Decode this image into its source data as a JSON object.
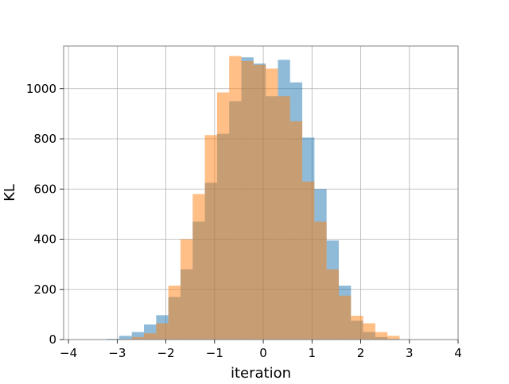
{
  "chart_data": {
    "type": "bar",
    "xlabel": "iteration",
    "ylabel": "KL",
    "xlim": [
      -4.1,
      4.0
    ],
    "ylim": [
      0,
      1170
    ],
    "xticks": [
      "−4",
      "−3",
      "−2",
      "−1",
      "0",
      "1",
      "2",
      "3",
      "4"
    ],
    "xtick_values": [
      -4,
      -3,
      -2,
      -1,
      0,
      1,
      2,
      3,
      4
    ],
    "yticks": [
      "0",
      "200",
      "400",
      "600",
      "800",
      "1000"
    ],
    "ytick_values": [
      0,
      200,
      400,
      600,
      800,
      1000
    ],
    "grid": true,
    "series": [
      {
        "color": "#1f77b4",
        "opacity": 0.5,
        "bin_edges": [
          -3.22,
          -2.96,
          -2.7,
          -2.45,
          -2.2,
          -1.95,
          -1.7,
          -1.45,
          -1.2,
          -0.95,
          -0.7,
          -0.45,
          -0.2,
          0.05,
          0.3,
          0.55,
          0.8,
          1.05,
          1.3,
          1.55,
          1.8,
          2.05,
          2.3,
          2.55,
          2.8
        ],
        "values": [
          3,
          15,
          30,
          60,
          97,
          170,
          280,
          470,
          625,
          820,
          950,
          1125,
          1100,
          970,
          1115,
          1025,
          805,
          600,
          395,
          215,
          75,
          30,
          10,
          3
        ]
      },
      {
        "color": "#ff7f0e",
        "opacity": 0.5,
        "bin_edges": [
          -2.95,
          -2.7,
          -2.45,
          -2.2,
          -1.95,
          -1.7,
          -1.45,
          -1.2,
          -0.95,
          -0.7,
          -0.45,
          -0.2,
          0.05,
          0.3,
          0.55,
          0.8,
          1.05,
          1.3,
          1.55,
          1.8,
          2.05,
          2.3,
          2.55,
          2.8
        ],
        "values": [
          2,
          10,
          25,
          65,
          215,
          400,
          580,
          815,
          985,
          1130,
          1110,
          1095,
          1080,
          970,
          870,
          630,
          470,
          280,
          175,
          95,
          65,
          30,
          15
        ]
      }
    ]
  }
}
